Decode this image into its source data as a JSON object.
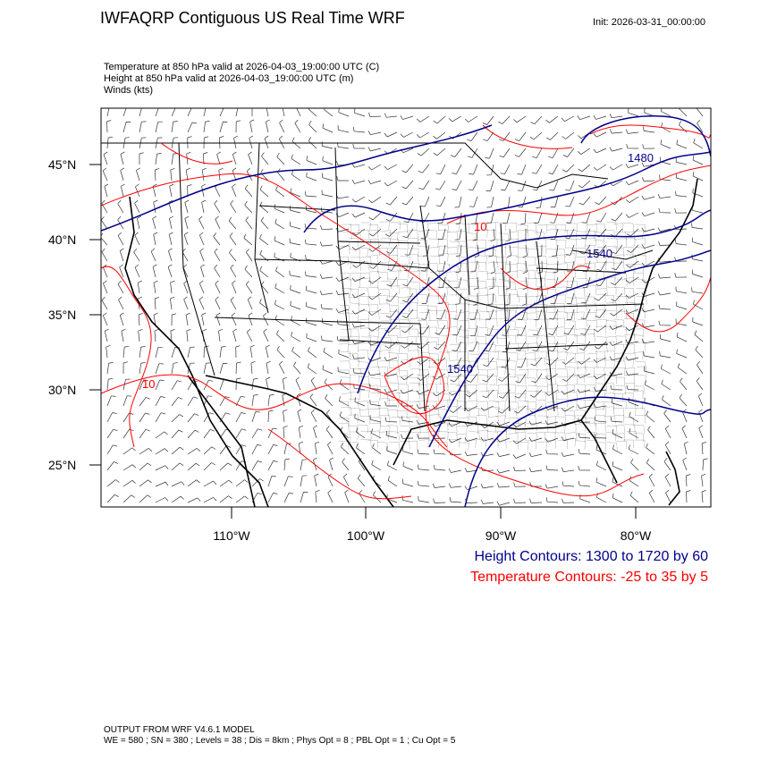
{
  "header": {
    "title": "IWFAQRP Contiguous US Real Time WRF",
    "init": "Init: 2026-03-31_00:00:00"
  },
  "fields": [
    "Temperature at 850 hPa valid at 2026-04-03_19:00:00 UTC   (C)",
    "Height at 850 hPa valid at 2026-04-03_19:00:00 UTC   (m)",
    "Winds   (kts)"
  ],
  "map": {
    "lat_labels": [
      "45°N",
      "40°N",
      "35°N",
      "30°N",
      "25°N"
    ],
    "lon_labels": [
      "110°W",
      "100°W",
      "90°W",
      "80°W"
    ],
    "height_contour_labels": [
      "1480",
      "1540",
      "1540"
    ],
    "temp_contour_labels": [
      "10",
      "10"
    ],
    "colors": {
      "height": "#00008b",
      "temperature": "#ff0000",
      "coast": "#000000"
    }
  },
  "legend": {
    "height": "Height Contours: 1300 to 1720 by 60",
    "temperature": "Temperature Contours: -25 to 35 by 5"
  },
  "footer": {
    "line1": "OUTPUT FROM WRF V4.6.1 MODEL",
    "line2": "WE = 580 ; SN = 380 ; Levels = 38 ; Dis = 8km ; Phys Opt = 8 ; PBL Opt = 1 ; Cu Opt = 5"
  }
}
